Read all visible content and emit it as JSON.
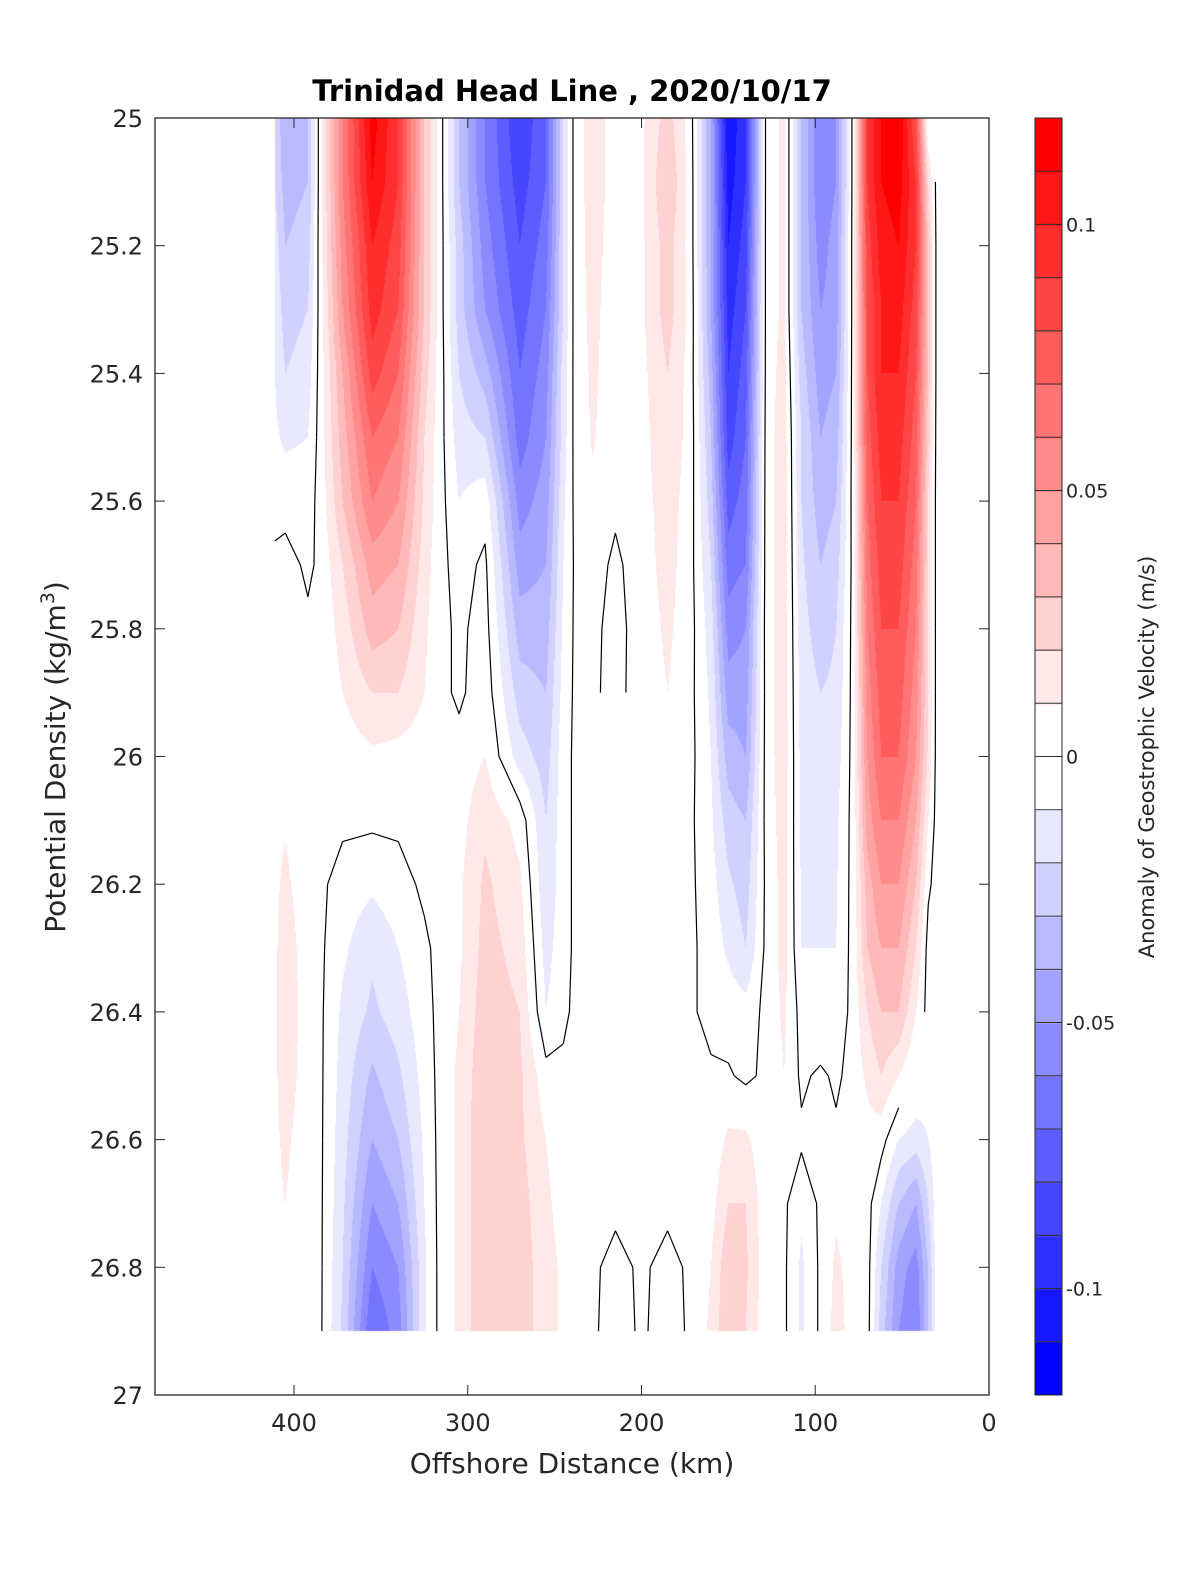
{
  "chart_data": {
    "type": "heatmap",
    "subtype": "filled-contour",
    "title": "Trinidad Head Line , 2020/10/17",
    "xlabel": "Offshore Distance (km)",
    "ylabel": "Potential Density (kg/m",
    "ylabel_superscript": "3",
    "ylabel_suffix": ")",
    "xlim": [
      480,
      0
    ],
    "x_reversed": true,
    "ylim": [
      25,
      27
    ],
    "y_reversed": true,
    "x_ticks": [
      400,
      300,
      200,
      100,
      0
    ],
    "x_tick_labels": [
      "400",
      "300",
      "200",
      "100",
      "0"
    ],
    "y_ticks": [
      25,
      25.2,
      25.4,
      25.6,
      25.8,
      26,
      26.2,
      26.4,
      26.6,
      26.8,
      27
    ],
    "y_tick_labels": [
      "25",
      "25.2",
      "25.4",
      "25.6",
      "25.8",
      "26",
      "26.2",
      "26.4",
      "26.6",
      "26.8",
      "27"
    ],
    "colorbar": {
      "label": "Anomaly of Geostrophic Velocity (m/s)",
      "range": [
        -0.12,
        0.12
      ],
      "level_step": 0.01,
      "ticks": [
        0.1,
        0.05,
        0,
        -0.05,
        -0.1
      ],
      "tick_labels": [
        "0.1",
        "0.05",
        "0",
        "-0.05",
        "-0.1"
      ],
      "colormap": "blue-white-red",
      "neg_color": "#0000ff",
      "zero_color": "#ffffff",
      "pos_color": "#ff0000",
      "placement": "right"
    },
    "contour_lines": {
      "level": 0,
      "color": "#000000"
    },
    "grid": false,
    "field": {
      "x_km": [
        411,
        405,
        392,
        385,
        372,
        355,
        340,
        325,
        316,
        305,
        290,
        270,
        255,
        245,
        238,
        228,
        215,
        200,
        185,
        172,
        160,
        150,
        140,
        128,
        118,
        108,
        97,
        88,
        78,
        70,
        62,
        52,
        42,
        35,
        30
      ],
      "sigma": [
        25.0,
        25.1,
        25.2,
        25.3,
        25.4,
        25.5,
        25.6,
        25.7,
        25.8,
        25.9,
        26.0,
        26.1,
        26.2,
        26.3,
        26.4,
        26.5,
        26.6,
        26.7,
        26.8,
        26.9
      ],
      "values": [
        [
          -0.02,
          -0.04,
          -0.03,
          0.005,
          0.06,
          0.115,
          0.09,
          0.03,
          0.005,
          -0.03,
          -0.06,
          -0.09,
          -0.07,
          -0.02,
          0.005,
          0.015,
          0.006,
          0.008,
          0.025,
          0.005,
          -0.04,
          -0.11,
          -0.09,
          0.005,
          0.012,
          -0.03,
          -0.06,
          -0.05,
          0.005,
          0.09,
          0.11,
          0.12,
          0.08,
          0.0,
          -0.004
        ],
        [
          -0.02,
          -0.035,
          -0.03,
          0.005,
          0.06,
          0.11,
          0.09,
          0.03,
          0.005,
          -0.03,
          -0.06,
          -0.085,
          -0.07,
          -0.02,
          0.005,
          0.015,
          0.006,
          0.008,
          0.03,
          0.006,
          -0.04,
          -0.105,
          -0.09,
          0.005,
          0.012,
          -0.03,
          -0.06,
          -0.05,
          0.005,
          0.09,
          0.11,
          0.115,
          0.09,
          0.02,
          -0.004
        ],
        [
          -0.015,
          -0.03,
          -0.025,
          0.005,
          0.055,
          0.1,
          0.085,
          0.03,
          0.005,
          -0.025,
          -0.055,
          -0.08,
          -0.065,
          -0.02,
          0.005,
          0.014,
          0.005,
          0.008,
          0.025,
          0.006,
          -0.04,
          -0.1,
          -0.085,
          0.005,
          0.012,
          -0.03,
          -0.055,
          -0.045,
          0.005,
          0.085,
          0.105,
          0.11,
          0.09,
          0.03,
          -0.004
        ],
        [
          -0.012,
          -0.025,
          -0.02,
          0.004,
          0.05,
          0.095,
          0.08,
          0.03,
          0.005,
          -0.025,
          -0.05,
          -0.075,
          -0.06,
          -0.02,
          0.005,
          0.013,
          0.004,
          0.008,
          0.025,
          0.007,
          -0.04,
          -0.095,
          -0.08,
          0.005,
          0.012,
          -0.03,
          -0.05,
          -0.045,
          0.005,
          0.08,
          0.1,
          0.105,
          0.085,
          0.03,
          -0.004
        ],
        [
          -0.01,
          -0.02,
          -0.015,
          0.004,
          0.04,
          0.085,
          0.07,
          0.025,
          0.005,
          -0.02,
          -0.035,
          -0.07,
          -0.055,
          -0.015,
          0.004,
          0.012,
          0.004,
          0.007,
          0.02,
          0.006,
          -0.035,
          -0.09,
          -0.075,
          0.005,
          0.014,
          -0.025,
          -0.045,
          -0.04,
          0.005,
          0.08,
          0.1,
          0.1,
          0.08,
          0.03,
          -0.004
        ],
        [
          -0.008,
          -0.012,
          -0.01,
          0.004,
          0.035,
          0.07,
          0.06,
          0.02,
          0.004,
          -0.015,
          -0.02,
          -0.065,
          -0.05,
          -0.015,
          0.004,
          0.011,
          0.003,
          0.006,
          0.018,
          0.006,
          -0.03,
          -0.085,
          -0.07,
          0.006,
          0.015,
          -0.02,
          -0.04,
          -0.035,
          0.005,
          0.075,
          0.095,
          0.095,
          0.075,
          0.025,
          -0.004
        ],
        [
          -0.005,
          -0.004,
          -0.004,
          0.003,
          0.03,
          0.06,
          0.05,
          0.018,
          0.004,
          -0.01,
          -0.004,
          -0.055,
          -0.045,
          -0.012,
          0.003,
          0.008,
          0.002,
          0.006,
          0.015,
          0.005,
          -0.025,
          -0.075,
          -0.065,
          0.006,
          0.016,
          -0.02,
          -0.035,
          -0.03,
          0.005,
          0.07,
          0.09,
          0.09,
          0.07,
          0.02,
          -0.004
        ],
        [
          0.003,
          0.004,
          -0.002,
          0.002,
          0.02,
          0.045,
          0.04,
          0.015,
          0.003,
          -0.004,
          0.002,
          -0.045,
          -0.04,
          -0.01,
          0.002,
          0.004,
          -0.002,
          0.005,
          0.014,
          0.004,
          -0.02,
          -0.065,
          -0.06,
          0.006,
          0.016,
          -0.018,
          -0.03,
          -0.025,
          0.004,
          0.065,
          0.085,
          0.085,
          0.065,
          0.02,
          -0.004
        ],
        [
          0.004,
          0.004,
          0.002,
          0.002,
          0.014,
          0.035,
          0.03,
          0.012,
          0.003,
          -0.002,
          0.004,
          -0.035,
          -0.035,
          -0.008,
          0.002,
          0.002,
          -0.003,
          0.004,
          0.012,
          0.004,
          -0.015,
          -0.055,
          -0.05,
          0.006,
          0.016,
          -0.016,
          -0.025,
          -0.02,
          0.004,
          0.06,
          0.08,
          0.08,
          0.06,
          0.02,
          -0.004
        ],
        [
          0.006,
          0.006,
          0.003,
          0.002,
          0.01,
          0.02,
          0.02,
          0.01,
          0.003,
          -0.002,
          0.006,
          -0.025,
          -0.03,
          -0.006,
          0.002,
          0.001,
          -0.002,
          0.003,
          0.01,
          0.003,
          -0.012,
          -0.045,
          -0.045,
          0.005,
          0.016,
          -0.014,
          -0.02,
          -0.018,
          0.004,
          0.055,
          0.075,
          0.075,
          0.055,
          0.02,
          -0.004
        ],
        [
          0.008,
          0.008,
          0.004,
          0.002,
          0.004,
          0.008,
          0.006,
          0.004,
          0.003,
          0.004,
          0.01,
          -0.015,
          -0.025,
          -0.004,
          0.002,
          0.002,
          0.0,
          0.003,
          0.008,
          0.003,
          -0.01,
          -0.035,
          -0.04,
          0.005,
          0.016,
          -0.013,
          -0.018,
          -0.015,
          0.004,
          0.05,
          0.07,
          0.07,
          0.05,
          0.018,
          -0.004
        ],
        [
          0.008,
          0.009,
          0.004,
          0.002,
          0.002,
          0.002,
          0.002,
          0.002,
          0.003,
          0.006,
          0.018,
          0.006,
          -0.02,
          -0.004,
          0.002,
          0.002,
          0.002,
          0.002,
          0.006,
          0.002,
          -0.008,
          -0.025,
          -0.03,
          0.004,
          0.015,
          -0.012,
          -0.015,
          -0.012,
          0.004,
          0.045,
          0.06,
          0.06,
          0.04,
          0.01,
          -0.004
        ],
        [
          0.008,
          0.012,
          0.004,
          0.002,
          -0.004,
          -0.008,
          -0.004,
          0.002,
          0.003,
          0.008,
          0.022,
          0.012,
          -0.018,
          -0.004,
          0.002,
          0.003,
          0.003,
          0.003,
          0.005,
          0.002,
          -0.006,
          -0.018,
          -0.025,
          0.003,
          0.014,
          -0.011,
          -0.012,
          -0.011,
          0.004,
          0.035,
          0.05,
          0.05,
          0.03,
          0.002,
          -0.004
        ],
        [
          0.008,
          0.016,
          0.004,
          0.002,
          -0.008,
          -0.018,
          -0.01,
          -0.002,
          0.003,
          0.008,
          0.024,
          0.016,
          -0.014,
          -0.004,
          0.002,
          0.003,
          0.003,
          0.004,
          0.004,
          0.002,
          -0.004,
          -0.012,
          -0.02,
          0.003,
          0.014,
          -0.01,
          -0.01,
          -0.01,
          0.004,
          0.03,
          0.04,
          0.04,
          0.02,
          -0.004,
          -0.004
        ],
        [
          0.008,
          0.018,
          0.004,
          0.002,
          -0.012,
          -0.022,
          -0.015,
          -0.004,
          0.003,
          0.01,
          0.026,
          0.02,
          -0.01,
          -0.002,
          0.002,
          0.003,
          0.003,
          0.004,
          0.005,
          0.002,
          -0.004,
          -0.004,
          -0.006,
          0.003,
          0.012,
          -0.004,
          -0.01,
          -0.008,
          0.004,
          0.02,
          0.03,
          0.03,
          0.01,
          -0.004,
          -0.004
        ],
        [
          0.008,
          0.016,
          0.004,
          0.002,
          -0.014,
          -0.032,
          -0.022,
          -0.006,
          0.003,
          0.012,
          0.028,
          0.022,
          0.004,
          0.002,
          0.002,
          0.003,
          0.003,
          0.004,
          0.005,
          0.002,
          0.002,
          0.001,
          -0.002,
          0.002,
          0.01,
          -0.002,
          0.002,
          -0.002,
          0.004,
          0.012,
          0.02,
          0.01,
          0.0,
          -0.006,
          -0.004
        ],
        [
          0.008,
          0.012,
          0.004,
          0.002,
          -0.016,
          -0.04,
          -0.03,
          -0.008,
          0.003,
          0.012,
          0.03,
          0.022,
          0.01,
          0.004,
          0.002,
          0.002,
          0.003,
          0.004,
          0.004,
          0.002,
          0.003,
          0.012,
          0.012,
          0.002,
          0.003,
          0.002,
          0.002,
          0.002,
          0.004,
          0.006,
          0.004,
          -0.01,
          -0.015,
          -0.01,
          -0.004
        ],
        [
          0.008,
          0.01,
          0.004,
          0.002,
          -0.018,
          -0.05,
          -0.04,
          -0.01,
          0.003,
          0.012,
          0.03,
          0.025,
          0.012,
          0.006,
          0.002,
          0.002,
          0.003,
          0.003,
          0.003,
          0.002,
          0.006,
          0.02,
          0.02,
          0.003,
          0.002,
          -0.008,
          0.002,
          0.008,
          0.005,
          0.004,
          -0.01,
          -0.03,
          -0.04,
          -0.02,
          -0.004
        ],
        [
          0.008,
          0.01,
          0.004,
          0.002,
          -0.02,
          -0.06,
          -0.05,
          -0.012,
          0.003,
          0.012,
          0.03,
          0.026,
          0.014,
          0.008,
          0.002,
          0.002,
          -0.004,
          0.002,
          -0.004,
          0.002,
          0.01,
          0.028,
          0.022,
          0.003,
          0.002,
          -0.012,
          0.002,
          0.012,
          0.006,
          0.004,
          -0.02,
          -0.045,
          -0.055,
          -0.03,
          -0.004
        ],
        [
          0.008,
          0.01,
          0.004,
          0.002,
          -0.022,
          -0.07,
          -0.055,
          -0.012,
          0.003,
          0.012,
          0.03,
          0.026,
          0.014,
          0.008,
          0.002,
          0.002,
          -0.006,
          0.002,
          -0.006,
          0.002,
          0.012,
          0.03,
          0.02,
          0.003,
          0.002,
          -0.012,
          0.002,
          0.014,
          0.006,
          0.004,
          -0.025,
          -0.05,
          -0.06,
          -0.03,
          -0.004
        ]
      ]
    }
  }
}
